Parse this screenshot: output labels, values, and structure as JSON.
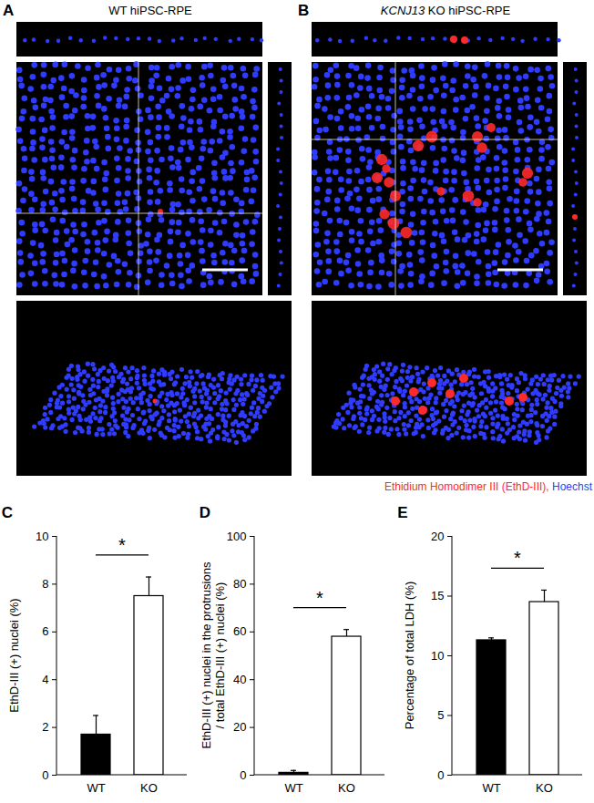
{
  "images": {
    "panels": [
      {
        "panel": "A",
        "title": "WT hiPSC-RPE"
      },
      {
        "panel": "B",
        "title": "KCNJ13 KO hiPSC-RPE",
        "italic": "KCNJ13"
      }
    ],
    "legend": [
      {
        "text": "Ethidium Homodimer III (EthD-III), ",
        "color": "#ff2a2a"
      },
      {
        "text": "Hoechst",
        "color": "#2f3cff"
      }
    ]
  },
  "chart_data": [
    {
      "type": "bar",
      "panel": "C",
      "categories": [
        "WT",
        "KO"
      ],
      "values": [
        1.7,
        7.5
      ],
      "error": [
        0.8,
        0.8
      ],
      "colors": [
        "#000000",
        "#ffffff"
      ],
      "ylabel": "EthD-III (+) nuclei (%)",
      "ylim": [
        0,
        10
      ],
      "yticks": [
        0,
        2,
        4,
        6,
        8,
        10
      ],
      "annotations": [
        "*"
      ]
    },
    {
      "type": "bar",
      "panel": "D",
      "categories": [
        "WT",
        "KO"
      ],
      "values": [
        1,
        58
      ],
      "error": [
        1,
        3
      ],
      "colors": [
        "#000000",
        "#ffffff"
      ],
      "ylabel": "EthD-III (+) nuclei in the protrusions\n/ total EthD-III (+) nuclei (%)",
      "ylim": [
        0,
        100
      ],
      "yticks": [
        0,
        20,
        40,
        60,
        80,
        100
      ],
      "annotations": [
        "*"
      ]
    },
    {
      "type": "bar",
      "panel": "E",
      "categories": [
        "WT",
        "KO"
      ],
      "values": [
        11.3,
        14.5
      ],
      "error": [
        0.2,
        1.0
      ],
      "colors": [
        "#000000",
        "#ffffff"
      ],
      "ylabel": "Percentage of total LDH (%)",
      "ylim": [
        0,
        20
      ],
      "yticks": [
        0,
        5,
        10,
        15,
        20
      ],
      "annotations": [
        "*"
      ]
    }
  ]
}
